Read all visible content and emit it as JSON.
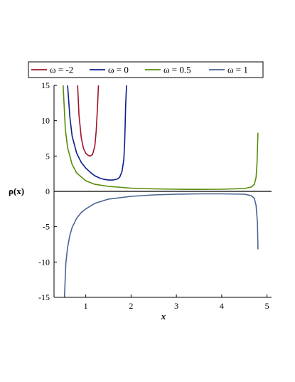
{
  "chart_data": {
    "type": "line",
    "xlabel": "x",
    "ylabel": "ρ(x)",
    "xlim": [
      0.3,
      5.1
    ],
    "ylim": [
      -15,
      15
    ],
    "xticks": [
      1,
      2,
      3,
      4,
      5
    ],
    "yticks": [
      15,
      10,
      5,
      0,
      -5,
      -10,
      -15
    ],
    "xtick_labels": [
      "1",
      "2",
      "3",
      "4",
      "5"
    ],
    "ytick_labels": [
      "15",
      "10",
      "5",
      "0",
      "-5",
      "-10",
      "-15"
    ],
    "legend_position": "top",
    "grid": false,
    "series": [
      {
        "name": "ω = -2",
        "color": "#a0142a",
        "x": [
          0.82,
          0.85,
          0.9,
          0.95,
          1.0,
          1.05,
          1.1,
          1.15,
          1.2,
          1.23,
          1.26,
          1.28
        ],
        "y": [
          15,
          10.8,
          7.6,
          6.1,
          5.4,
          5.1,
          5.0,
          5.2,
          6.4,
          8.5,
          12.0,
          15
        ]
      },
      {
        "name": "ω = 0",
        "color": "#0a1e8c",
        "x": [
          0.6,
          0.65,
          0.7,
          0.8,
          0.9,
          1.0,
          1.1,
          1.2,
          1.3,
          1.4,
          1.5,
          1.6,
          1.7,
          1.75,
          1.8,
          1.84,
          1.86,
          1.87,
          1.88,
          1.9
        ],
        "y": [
          15,
          10.5,
          7.8,
          5.4,
          4.1,
          3.3,
          2.7,
          2.2,
          1.9,
          1.7,
          1.6,
          1.6,
          1.75,
          2.0,
          2.8,
          4.5,
          7.0,
          9.5,
          12.0,
          15
        ]
      },
      {
        "name": "ω = 0.5",
        "color": "#5a8c0a",
        "x": [
          0.5,
          0.55,
          0.6,
          0.7,
          0.8,
          1.0,
          1.2,
          1.5,
          2.0,
          2.5,
          3.0,
          3.5,
          4.0,
          4.5,
          4.65,
          4.72,
          4.76,
          4.78,
          4.8
        ],
        "y": [
          15,
          8.8,
          6.2,
          3.8,
          2.6,
          1.5,
          1.0,
          0.7,
          0.45,
          0.35,
          0.3,
          0.28,
          0.3,
          0.4,
          0.6,
          1.0,
          2.0,
          4.0,
          8.3
        ]
      },
      {
        "name": "ω = 1",
        "color": "#4a6491",
        "x": [
          0.53,
          0.56,
          0.6,
          0.65,
          0.7,
          0.8,
          0.9,
          1.0,
          1.2,
          1.5,
          2.0,
          2.5,
          3.0,
          3.5,
          4.0,
          4.5,
          4.65,
          4.72,
          4.76,
          4.79,
          4.8
        ],
        "y": [
          -15,
          -10.2,
          -7.9,
          -6.2,
          -5.1,
          -3.8,
          -3.0,
          -2.5,
          -1.7,
          -1.1,
          -0.7,
          -0.5,
          -0.4,
          -0.35,
          -0.35,
          -0.4,
          -0.6,
          -1.0,
          -2.0,
          -4.5,
          -8.2
        ]
      }
    ]
  }
}
